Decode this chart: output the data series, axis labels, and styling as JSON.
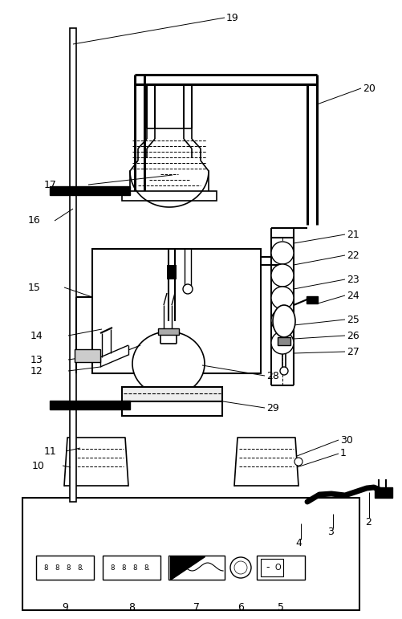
{
  "bg_color": "#ffffff",
  "line_color": "#000000",
  "fig_width": 5.01,
  "fig_height": 7.71,
  "dpi": 100
}
